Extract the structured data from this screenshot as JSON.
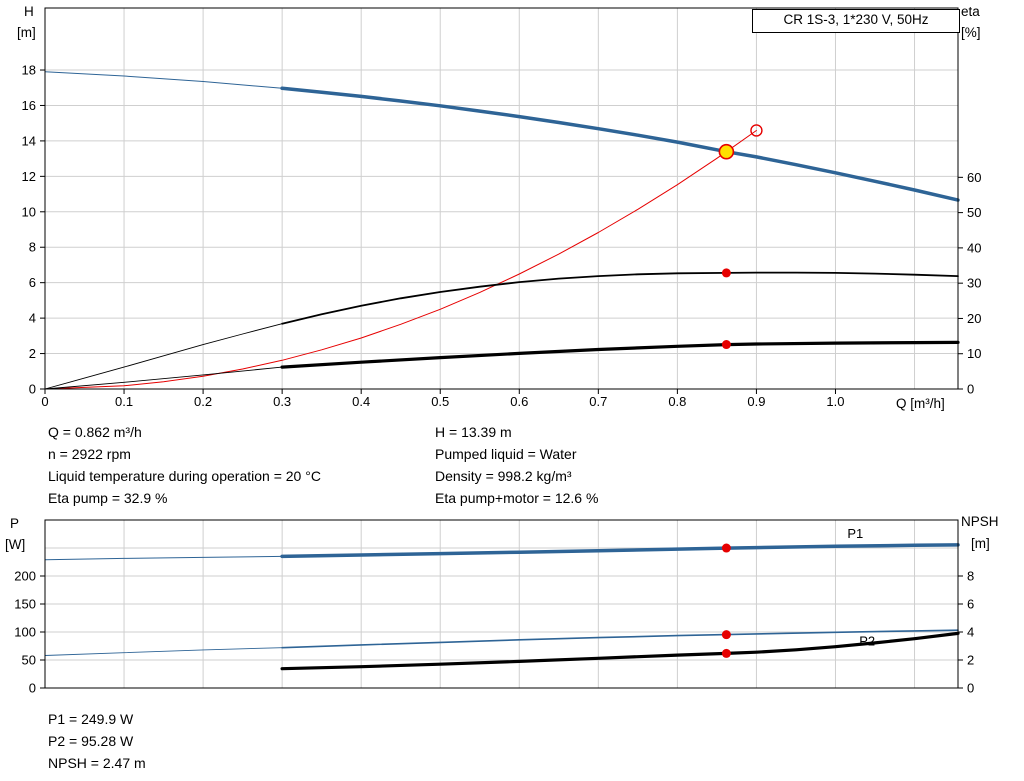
{
  "header": {
    "title": "CR 1S-3, 1*230 V, 50Hz"
  },
  "colors": {
    "curve_blue": "#2e6496",
    "curve_black": "#000000",
    "curve_red": "#e60000",
    "marker_red": "#e60000",
    "duty_yellow": "#ffdf00",
    "grid": "#cfcfcf",
    "frame": "#000000"
  },
  "duty_panel": {
    "left": [
      "Q = 0.862 m³/h",
      "n = 2922 rpm",
      "Liquid temperature during operation = 20 °C",
      "Eta pump = 32.9 %"
    ],
    "right": [
      "H = 13.39 m",
      "Pumped liquid = Water",
      "Density = 998.2 kg/m³",
      "Eta pump+motor = 12.6 %"
    ]
  },
  "result_panel": [
    "P1 = 249.9 W",
    "P2 = 95.28 W",
    "NPSH = 2.47 m"
  ],
  "chart_data": [
    {
      "name": "qh",
      "type": "line",
      "title": "CR 1S-3, 1*230 V, 50Hz",
      "x": {
        "label": "Q [m³/h]",
        "min": 0,
        "max": 1.155,
        "ticks": [
          {
            "v": 0,
            "t": "0"
          },
          {
            "v": 0.1,
            "t": "0.1"
          },
          {
            "v": 0.2,
            "t": "0.2"
          },
          {
            "v": 0.3,
            "t": "0.3"
          },
          {
            "v": 0.4,
            "t": "0.4"
          },
          {
            "v": 0.5,
            "t": "0.5"
          },
          {
            "v": 0.6,
            "t": "0.6"
          },
          {
            "v": 0.7,
            "t": "0.7"
          },
          {
            "v": 0.8,
            "t": "0.8"
          },
          {
            "v": 0.9,
            "t": "0.9"
          },
          {
            "v": 1.0,
            "t": "1.0"
          }
        ],
        "grid": [
          0.1,
          0.2,
          0.3,
          0.4,
          0.5,
          0.6,
          0.7,
          0.8,
          0.9,
          1.0,
          1.1
        ]
      },
      "left": {
        "title": "H",
        "unit": "[m]",
        "min": 0,
        "max": 21.5,
        "ticks": [
          {
            "v": 0,
            "t": "0"
          },
          {
            "v": 2,
            "t": "2"
          },
          {
            "v": 4,
            "t": "4"
          },
          {
            "v": 6,
            "t": "6"
          },
          {
            "v": 8,
            "t": "8"
          },
          {
            "v": 10,
            "t": "10"
          },
          {
            "v": 12,
            "t": "12"
          },
          {
            "v": 14,
            "t": "14"
          },
          {
            "v": 16,
            "t": "16"
          },
          {
            "v": 18,
            "t": "18"
          }
        ],
        "grid": [
          2,
          4,
          6,
          8,
          10,
          12,
          14,
          16,
          18
        ]
      },
      "right": {
        "title": "eta",
        "unit": "[%]",
        "min": 0,
        "max": 108,
        "ticks": [
          {
            "v": 0,
            "t": "0"
          },
          {
            "v": 10,
            "t": "10"
          },
          {
            "v": 20,
            "t": "20"
          },
          {
            "v": 30,
            "t": "30"
          },
          {
            "v": 40,
            "t": "40"
          },
          {
            "v": 50,
            "t": "50"
          },
          {
            "v": 60,
            "t": "60"
          }
        ]
      },
      "series": [
        {
          "name": "h-curve-preview",
          "axis": "left",
          "color": "#2e6496",
          "width": 1,
          "points": [
            [
              0,
              17.9
            ],
            [
              0.1,
              17.66
            ],
            [
              0.2,
              17.35
            ],
            [
              0.3,
              16.97
            ]
          ]
        },
        {
          "name": "h-curve",
          "axis": "left",
          "color": "#2e6496",
          "width": 3.5,
          "points": [
            [
              0.3,
              16.97
            ],
            [
              0.35,
              16.75
            ],
            [
              0.4,
              16.51
            ],
            [
              0.45,
              16.25
            ],
            [
              0.5,
              15.98
            ],
            [
              0.55,
              15.68
            ],
            [
              0.6,
              15.37
            ],
            [
              0.65,
              15.04
            ],
            [
              0.7,
              14.69
            ],
            [
              0.75,
              14.32
            ],
            [
              0.8,
              13.93
            ],
            [
              0.862,
              13.39
            ],
            [
              0.9,
              13.1
            ],
            [
              0.95,
              12.66
            ],
            [
              1.0,
              12.2
            ],
            [
              1.05,
              11.72
            ],
            [
              1.1,
              11.23
            ],
            [
              1.155,
              10.66
            ]
          ]
        },
        {
          "name": "system-curve",
          "axis": "left",
          "color": "#e60000",
          "width": 1,
          "points": [
            [
              0,
              0
            ],
            [
              0.1,
              0.18
            ],
            [
              0.15,
              0.41
            ],
            [
              0.2,
              0.72
            ],
            [
              0.25,
              1.13
            ],
            [
              0.3,
              1.62
            ],
            [
              0.35,
              2.21
            ],
            [
              0.4,
              2.88
            ],
            [
              0.45,
              3.65
            ],
            [
              0.5,
              4.5
            ],
            [
              0.55,
              5.45
            ],
            [
              0.6,
              6.49
            ],
            [
              0.65,
              7.61
            ],
            [
              0.7,
              8.83
            ],
            [
              0.75,
              10.14
            ],
            [
              0.8,
              11.53
            ],
            [
              0.85,
              13.02
            ],
            [
              0.862,
              13.39
            ],
            [
              0.9,
              14.59
            ]
          ]
        },
        {
          "name": "eta-pump-preview",
          "axis": "right",
          "color": "#000000",
          "width": 0.9,
          "points": [
            [
              0,
              0
            ],
            [
              0.05,
              3.1
            ],
            [
              0.1,
              6.2
            ],
            [
              0.15,
              9.4
            ],
            [
              0.2,
              12.6
            ],
            [
              0.25,
              15.6
            ],
            [
              0.3,
              18.5
            ]
          ]
        },
        {
          "name": "eta-pump-curve",
          "axis": "right",
          "color": "#000000",
          "width": 1.8,
          "points": [
            [
              0.3,
              18.5
            ],
            [
              0.35,
              21.2
            ],
            [
              0.4,
              23.6
            ],
            [
              0.45,
              25.7
            ],
            [
              0.5,
              27.5
            ],
            [
              0.55,
              29.0
            ],
            [
              0.6,
              30.3
            ],
            [
              0.65,
              31.3
            ],
            [
              0.7,
              32.0
            ],
            [
              0.75,
              32.5
            ],
            [
              0.8,
              32.8
            ],
            [
              0.862,
              32.9
            ],
            [
              0.9,
              33.0
            ],
            [
              0.95,
              33.0
            ],
            [
              1.0,
              32.9
            ],
            [
              1.05,
              32.7
            ],
            [
              1.1,
              32.4
            ],
            [
              1.155,
              32.0
            ]
          ]
        },
        {
          "name": "eta-pump-motor-preview",
          "axis": "right",
          "color": "#000000",
          "width": 0.9,
          "points": [
            [
              0,
              0
            ],
            [
              0.1,
              1.9
            ],
            [
              0.2,
              4.0
            ],
            [
              0.3,
              6.2
            ]
          ]
        },
        {
          "name": "eta-pump-motor-curve",
          "axis": "right",
          "color": "#000000",
          "width": 3.2,
          "points": [
            [
              0.3,
              6.2
            ],
            [
              0.4,
              7.6
            ],
            [
              0.5,
              8.9
            ],
            [
              0.6,
              10.1
            ],
            [
              0.7,
              11.2
            ],
            [
              0.8,
              12.1
            ],
            [
              0.862,
              12.6
            ],
            [
              0.9,
              12.75
            ],
            [
              1.0,
              13.0
            ],
            [
              1.1,
              13.15
            ],
            [
              1.155,
              13.2
            ]
          ]
        }
      ],
      "markers": [
        {
          "name": "duty-point",
          "x": 0.862,
          "y": 13.39,
          "axis": "left",
          "r": 7,
          "fill": "#ffdf00",
          "stroke": "#e60000",
          "sw": 1.6
        },
        {
          "name": "requested-duty-point",
          "x": 0.9,
          "y": 14.59,
          "axis": "left",
          "r": 5.5,
          "fill": "none",
          "stroke": "#e60000",
          "sw": 1.4
        },
        {
          "name": "eta-pump-point",
          "x": 0.862,
          "y": 32.9,
          "axis": "right",
          "r": 4.5,
          "fill": "#e60000"
        },
        {
          "name": "eta-pump-motor-point",
          "x": 0.862,
          "y": 12.6,
          "axis": "right",
          "r": 4.5,
          "fill": "#e60000"
        }
      ],
      "annotations": []
    },
    {
      "name": "power",
      "type": "line",
      "x": {
        "label": "",
        "min": 0,
        "max": 1.155,
        "ticks": [],
        "grid": [
          0.1,
          0.2,
          0.3,
          0.4,
          0.5,
          0.6,
          0.7,
          0.8,
          0.9,
          1.0,
          1.1
        ]
      },
      "left": {
        "title": "P",
        "unit": "[W]",
        "min": 0,
        "max": 300,
        "ticks": [
          {
            "v": 0,
            "t": "0"
          },
          {
            "v": 50,
            "t": "50"
          },
          {
            "v": 100,
            "t": "100"
          },
          {
            "v": 150,
            "t": "150"
          },
          {
            "v": 200,
            "t": "200"
          }
        ],
        "grid": [
          50,
          100,
          150,
          200,
          250
        ]
      },
      "right": {
        "title": "NPSH",
        "unit": "[m]",
        "min": 0,
        "max": 12,
        "ticks": [
          {
            "v": 0,
            "t": "0"
          },
          {
            "v": 2,
            "t": "2"
          },
          {
            "v": 4,
            "t": "4"
          },
          {
            "v": 6,
            "t": "6"
          },
          {
            "v": 8,
            "t": "8"
          }
        ]
      },
      "series": [
        {
          "name": "p1-curve-preview",
          "axis": "left",
          "color": "#2e6496",
          "width": 1,
          "points": [
            [
              0,
              229
            ],
            [
              0.1,
              231.5
            ],
            [
              0.2,
              233.3
            ],
            [
              0.3,
              235
            ]
          ]
        },
        {
          "name": "p1-curve",
          "axis": "left",
          "color": "#2e6496",
          "width": 3.5,
          "points": [
            [
              0.3,
              235
            ],
            [
              0.4,
              237.5
            ],
            [
              0.5,
              240
            ],
            [
              0.6,
              242.5
            ],
            [
              0.7,
              245
            ],
            [
              0.8,
              248
            ],
            [
              0.862,
              249.9
            ],
            [
              0.9,
              250.8
            ],
            [
              1.0,
              253
            ],
            [
              1.1,
              254.8
            ],
            [
              1.155,
              255.5
            ]
          ]
        },
        {
          "name": "p2-curve-preview",
          "axis": "left",
          "color": "#2e6496",
          "width": 0.9,
          "points": [
            [
              0,
              58
            ],
            [
              0.1,
              63
            ],
            [
              0.2,
              68
            ],
            [
              0.3,
              72
            ]
          ]
        },
        {
          "name": "p2-curve",
          "axis": "left",
          "color": "#2e6496",
          "width": 1.6,
          "points": [
            [
              0.3,
              72
            ],
            [
              0.4,
              77
            ],
            [
              0.5,
              81.5
            ],
            [
              0.6,
              86
            ],
            [
              0.7,
              90
            ],
            [
              0.8,
              93.5
            ],
            [
              0.862,
              95.3
            ],
            [
              0.9,
              96.6
            ],
            [
              1.0,
              99.5
            ],
            [
              1.1,
              102
            ],
            [
              1.155,
              103.2
            ]
          ]
        },
        {
          "name": "npsh-curve",
          "axis": "right",
          "color": "#000000",
          "width": 3.2,
          "points": [
            [
              0.3,
              1.38
            ],
            [
              0.4,
              1.52
            ],
            [
              0.5,
              1.7
            ],
            [
              0.6,
              1.9
            ],
            [
              0.7,
              2.12
            ],
            [
              0.8,
              2.35
            ],
            [
              0.862,
              2.47
            ],
            [
              0.9,
              2.56
            ],
            [
              0.95,
              2.73
            ],
            [
              1.0,
              2.95
            ],
            [
              1.05,
              3.22
            ],
            [
              1.1,
              3.52
            ],
            [
              1.155,
              3.9
            ]
          ]
        }
      ],
      "markers": [
        {
          "name": "p1-point",
          "x": 0.862,
          "y": 249.9,
          "axis": "left",
          "r": 4.5,
          "fill": "#e60000"
        },
        {
          "name": "p2-point",
          "x": 0.862,
          "y": 95.28,
          "axis": "left",
          "r": 4.5,
          "fill": "#e60000"
        },
        {
          "name": "npsh-point",
          "x": 0.862,
          "y": 2.47,
          "axis": "right",
          "r": 4.5,
          "fill": "#e60000"
        }
      ],
      "annotations": [
        {
          "name": "p1-label",
          "text": "P1",
          "x": 1.015,
          "y": 268,
          "axis": "left",
          "color": "#2e6496"
        },
        {
          "name": "p2-label",
          "text": "P2",
          "x": 1.03,
          "y": 76,
          "axis": "left",
          "color": "#2e6496"
        }
      ]
    }
  ]
}
